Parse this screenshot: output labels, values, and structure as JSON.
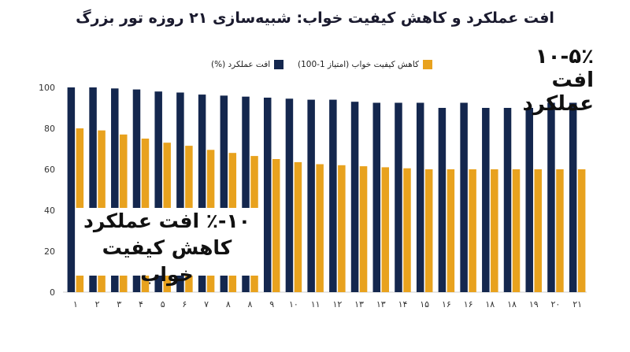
{
  "chart_data": {
    "type": "bar",
    "title": "افت عملکرد و کاهش کیفیت خواب: شبیه‌سازی ۲۱ روزه تور بزرگ",
    "categories": [
      "۱",
      "۲",
      "۳",
      "۴",
      "۵",
      "۶",
      "۷",
      "۸",
      "۸",
      "۹",
      "۱۰",
      "۱۱",
      "۱۲",
      "۱۳",
      "۱۳",
      "۱۴",
      "۱۵",
      "۱۶",
      "۱۶",
      "۱۸",
      "۱۸",
      "۱۹",
      "۲۰",
      "۲۱"
    ],
    "series": [
      {
        "name": "افت عملکرد (%)",
        "color": "#14274e",
        "values": [
          100,
          100,
          99.5,
          99,
          98,
          97.5,
          96.5,
          96,
          95.5,
          95,
          94.5,
          94,
          94,
          93,
          92.5,
          92.5,
          92.5,
          90,
          92.5,
          90,
          90,
          90,
          92.5,
          92.5
        ]
      },
      {
        "name": "کاهش کیفیت خواب (امتیاز 1-100)",
        "color": "#e8a21e",
        "values": [
          80,
          79,
          77,
          75,
          73,
          71.5,
          69.5,
          68,
          66.5,
          65,
          63.5,
          62.5,
          62,
          61.5,
          61,
          60.5,
          60,
          60,
          60,
          60,
          60,
          60,
          60,
          60
        ]
      }
    ],
    "yticks": [
      "0",
      "20",
      "40",
      "60",
      "80",
      "100"
    ],
    "ylim": [
      0,
      100
    ],
    "grid": false,
    "legend_position": "top"
  },
  "annotations": {
    "top_right_line1": "۱۰-۵٪",
    "top_right_line2": "افت عملکرد",
    "box_line1": "۱۰-٪ افت عملکرد",
    "box_line2": "کاهش کیفیت خواب"
  }
}
